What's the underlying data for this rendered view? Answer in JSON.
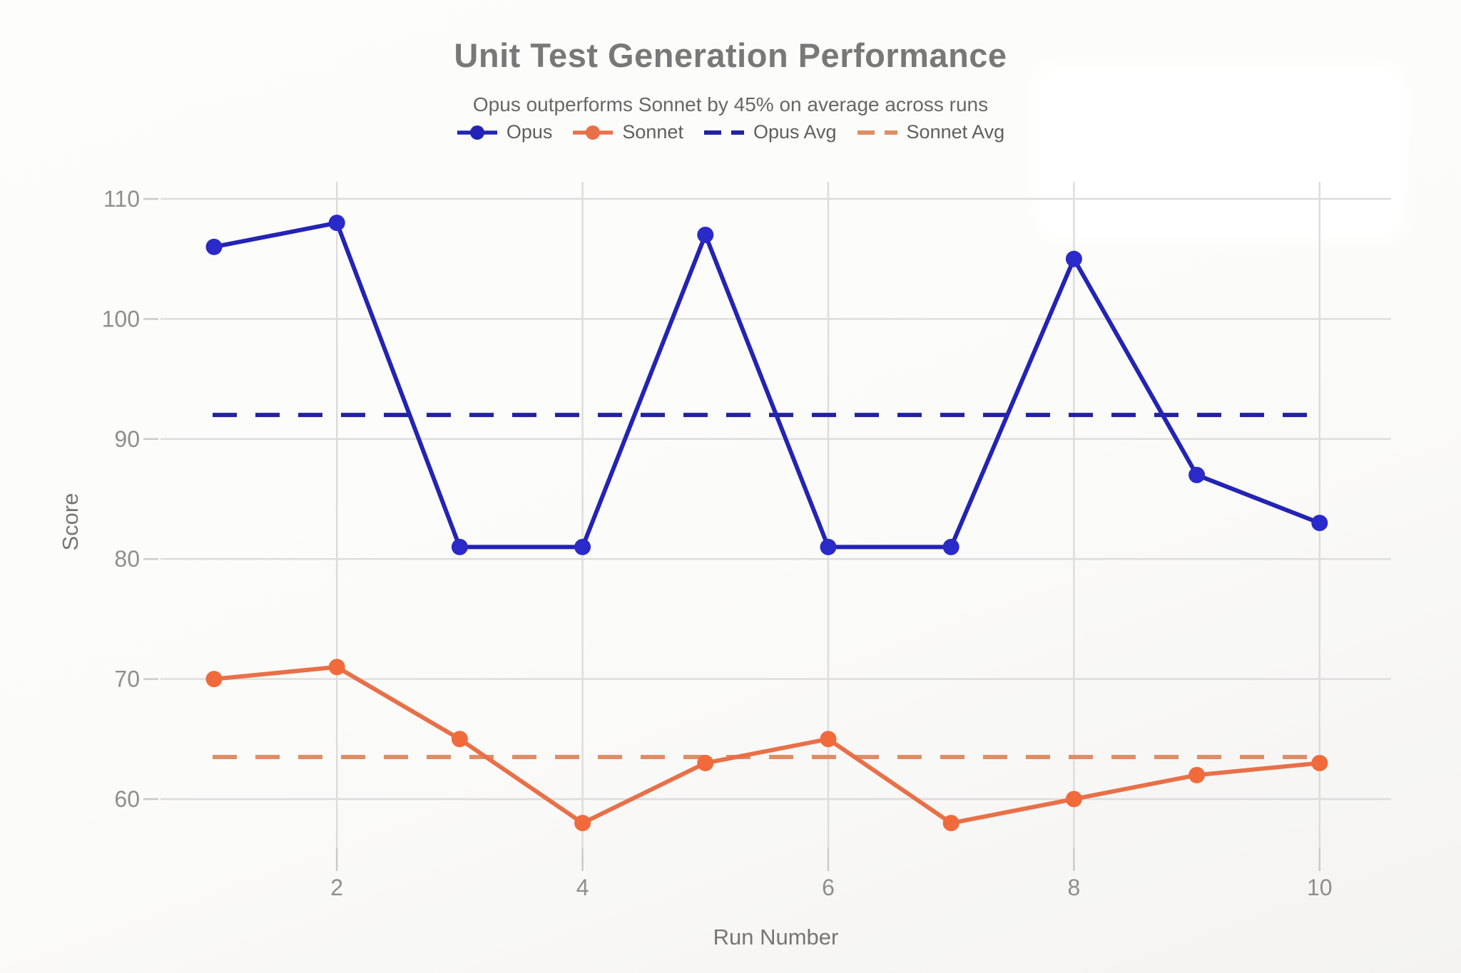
{
  "page": {
    "title": "Unit Test Generation Performance",
    "subtitle": "Opus outperforms Sonnet by 45% on average across runs"
  },
  "legend": [
    {
      "label": "Opus",
      "color": "#2323b4",
      "style": "solid-dot"
    },
    {
      "label": "Sonnet",
      "color": "#e87048",
      "style": "solid-dot"
    },
    {
      "label": "Opus Avg",
      "color": "#22229e",
      "style": "dashed"
    },
    {
      "label": "Sonnet Avg",
      "color": "#dd8e66",
      "style": "dashed"
    }
  ],
  "chart_data": {
    "type": "line",
    "title": "Unit Test Generation Performance",
    "subtitle": "Opus outperforms Sonnet by 45% on average across runs",
    "xlabel": "Run Number",
    "ylabel": "Score",
    "x": [
      1,
      2,
      3,
      4,
      5,
      6,
      7,
      8,
      9,
      10
    ],
    "series": [
      {
        "name": "Opus",
        "type": "line",
        "color": "#2323b4",
        "marker_color": "#2a2ac8",
        "values": [
          106,
          108,
          81,
          81,
          107,
          81,
          81,
          105,
          87,
          83
        ]
      },
      {
        "name": "Sonnet",
        "type": "line",
        "color": "#e87048",
        "marker_color": "#f06a3c",
        "values": [
          70,
          71,
          65,
          58,
          63,
          65,
          58,
          60,
          62,
          63
        ]
      }
    ],
    "reference_lines": [
      {
        "name": "Opus Avg",
        "value": 92,
        "color": "#22229e",
        "style": "dashed"
      },
      {
        "name": "Sonnet Avg",
        "value": 63.5,
        "color": "#dd8e66",
        "style": "dashed"
      }
    ],
    "x_ticks": [
      2,
      4,
      6,
      8,
      10
    ],
    "y_ticks": [
      60,
      70,
      80,
      90,
      100,
      110
    ],
    "xlim": [
      0.55,
      10.6
    ],
    "ylim": [
      55,
      114
    ],
    "grid": true,
    "legend_position": "top-center"
  },
  "colors": {
    "background": "#fbfbf9",
    "gridline": "#dcdcdc",
    "tick": "#c9c9c9",
    "title_text": "#787878",
    "subtitle_text": "#676767",
    "legend_text": "#5f5f5f",
    "tick_label_text": "#8e8e8e",
    "axis_title_text": "#757575"
  }
}
